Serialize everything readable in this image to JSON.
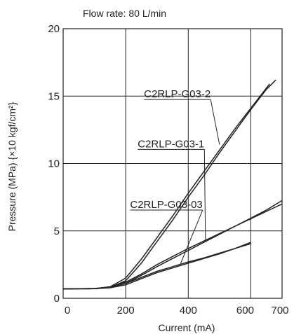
{
  "chart_data": {
    "type": "line",
    "title": "",
    "annotation": "Flow rate: 80 L/min",
    "xlabel": "Current (mA)",
    "ylabel": "Pressure (MPa) {×10 kgf/cm²}",
    "xlim": [
      0,
      700
    ],
    "ylim": [
      0,
      20
    ],
    "x_ticks": [
      "0",
      "200",
      "400",
      "600",
      "700"
    ],
    "y_ticks": [
      "0",
      "5",
      "10",
      "15",
      "20"
    ],
    "grid": true,
    "legend": "labels on chart with leader lines",
    "line_color": "#222222",
    "series": [
      {
        "name": "C2RLP-G03-2",
        "curves": [
          [
            [
              0,
              0.7
            ],
            [
              100,
              0.72
            ],
            [
              150,
              0.85
            ],
            [
              200,
              1.5
            ],
            [
              250,
              2.9
            ],
            [
              300,
              4.5
            ],
            [
              350,
              6.1
            ],
            [
              400,
              7.8
            ],
            [
              450,
              9.4
            ],
            [
              500,
              11.0
            ],
            [
              550,
              12.6
            ],
            [
              600,
              14.1
            ],
            [
              650,
              15.6
            ],
            [
              660,
              15.9
            ]
          ],
          [
            [
              0,
              0.7
            ],
            [
              100,
              0.71
            ],
            [
              150,
              0.8
            ],
            [
              200,
              1.3
            ],
            [
              250,
              2.6
            ],
            [
              300,
              4.2
            ],
            [
              350,
              5.8
            ],
            [
              400,
              7.5
            ],
            [
              450,
              9.1
            ],
            [
              500,
              10.8
            ],
            [
              550,
              12.4
            ],
            [
              600,
              14.0
            ],
            [
              650,
              15.5
            ],
            [
              680,
              16.2
            ]
          ]
        ]
      },
      {
        "name": "C2RLP-G03-1",
        "curves": [
          [
            [
              0,
              0.7
            ],
            [
              100,
              0.72
            ],
            [
              150,
              0.85
            ],
            [
              200,
              1.2
            ],
            [
              250,
              1.8
            ],
            [
              300,
              2.5
            ],
            [
              350,
              3.1
            ],
            [
              400,
              3.7
            ],
            [
              450,
              4.25
            ],
            [
              500,
              4.8
            ],
            [
              550,
              5.35
            ],
            [
              600,
              5.9
            ],
            [
              650,
              6.45
            ],
            [
              700,
              7.0
            ]
          ],
          [
            [
              0,
              0.7
            ],
            [
              100,
              0.71
            ],
            [
              150,
              0.8
            ],
            [
              200,
              1.1
            ],
            [
              250,
              1.7
            ],
            [
              300,
              2.35
            ],
            [
              350,
              2.95
            ],
            [
              400,
              3.55
            ],
            [
              450,
              4.15
            ],
            [
              500,
              4.75
            ],
            [
              550,
              5.35
            ],
            [
              600,
              5.95
            ],
            [
              650,
              6.55
            ],
            [
              700,
              7.25
            ]
          ]
        ]
      },
      {
        "name": "C2RLP-G03-03",
        "curves": [
          [
            [
              0,
              0.7
            ],
            [
              100,
              0.72
            ],
            [
              150,
              0.82
            ],
            [
              200,
              1.1
            ],
            [
              250,
              1.55
            ],
            [
              300,
              2.0
            ],
            [
              350,
              2.35
            ],
            [
              400,
              2.7
            ],
            [
              450,
              3.0
            ],
            [
              500,
              3.35
            ],
            [
              550,
              3.7
            ],
            [
              600,
              4.05
            ]
          ],
          [
            [
              0,
              0.7
            ],
            [
              100,
              0.71
            ],
            [
              150,
              0.78
            ],
            [
              200,
              1.0
            ],
            [
              250,
              1.45
            ],
            [
              300,
              1.9
            ],
            [
              350,
              2.25
            ],
            [
              400,
              2.6
            ],
            [
              450,
              2.95
            ],
            [
              500,
              3.3
            ],
            [
              550,
              3.7
            ],
            [
              600,
              4.15
            ]
          ]
        ]
      }
    ],
    "labels": [
      {
        "series": 0,
        "text": "C2RLP-G03-2",
        "at": [
          365,
          14.9
        ],
        "leader_to": [
          500,
          11.4
        ]
      },
      {
        "series": 1,
        "text": "C2RLP-G03-1",
        "at": [
          345,
          11.2
        ],
        "leader_to": [
          455,
          4.3
        ]
      },
      {
        "series": 2,
        "text": "C2RLP-G03-03",
        "at": [
          330,
          6.7
        ],
        "leader_to": [
          375,
          2.55
        ]
      }
    ]
  }
}
